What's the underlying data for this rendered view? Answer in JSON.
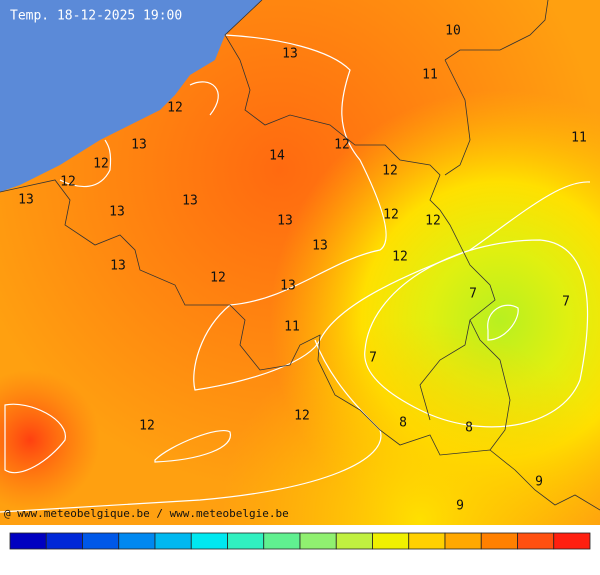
{
  "header": {
    "title": "Temp. 18-12-2025 19:00"
  },
  "labels": [
    10,
    13,
    11,
    12,
    11,
    13,
    12,
    14,
    12,
    12,
    12,
    13,
    13,
    13,
    12,
    13,
    12,
    13,
    12,
    13,
    12,
    13,
    7,
    7,
    11,
    7,
    12,
    8,
    12,
    8,
    9,
    9
  ],
  "footer": {
    "credit": "@ www.meteobelgique.be / www.meteobelgie.be"
  }
}
